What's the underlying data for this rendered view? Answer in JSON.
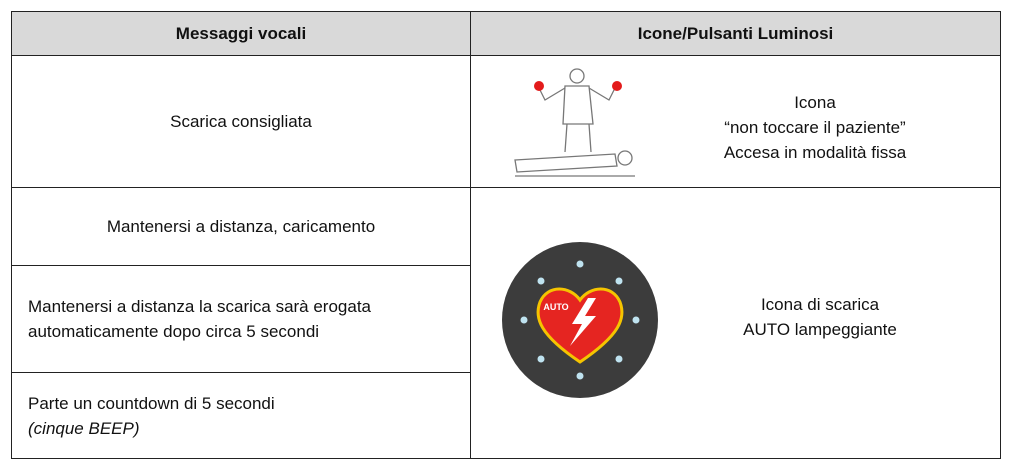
{
  "header": {
    "col1": "Messaggi vocali",
    "col2": "Icone/Pulsanti Luminosi"
  },
  "left": [
    "Scarica consigliata",
    "Mantenersi a distanza, caricamento",
    "Mantenersi a distanza la scarica sarà erogata automaticamente dopo circa 5 secondi",
    {
      "text": "Parte un countdown di 5 secondi",
      "note": "(cinque BEEP)"
    }
  ],
  "right": [
    {
      "lines": [
        "Icona",
        "“non toccare il paziente”",
        "Accesa in modalità fissa"
      ]
    },
    {
      "lines": [
        "Icona di scarica",
        "AUTO lampeggiante"
      ],
      "icon_label": "AUTO"
    }
  ]
}
